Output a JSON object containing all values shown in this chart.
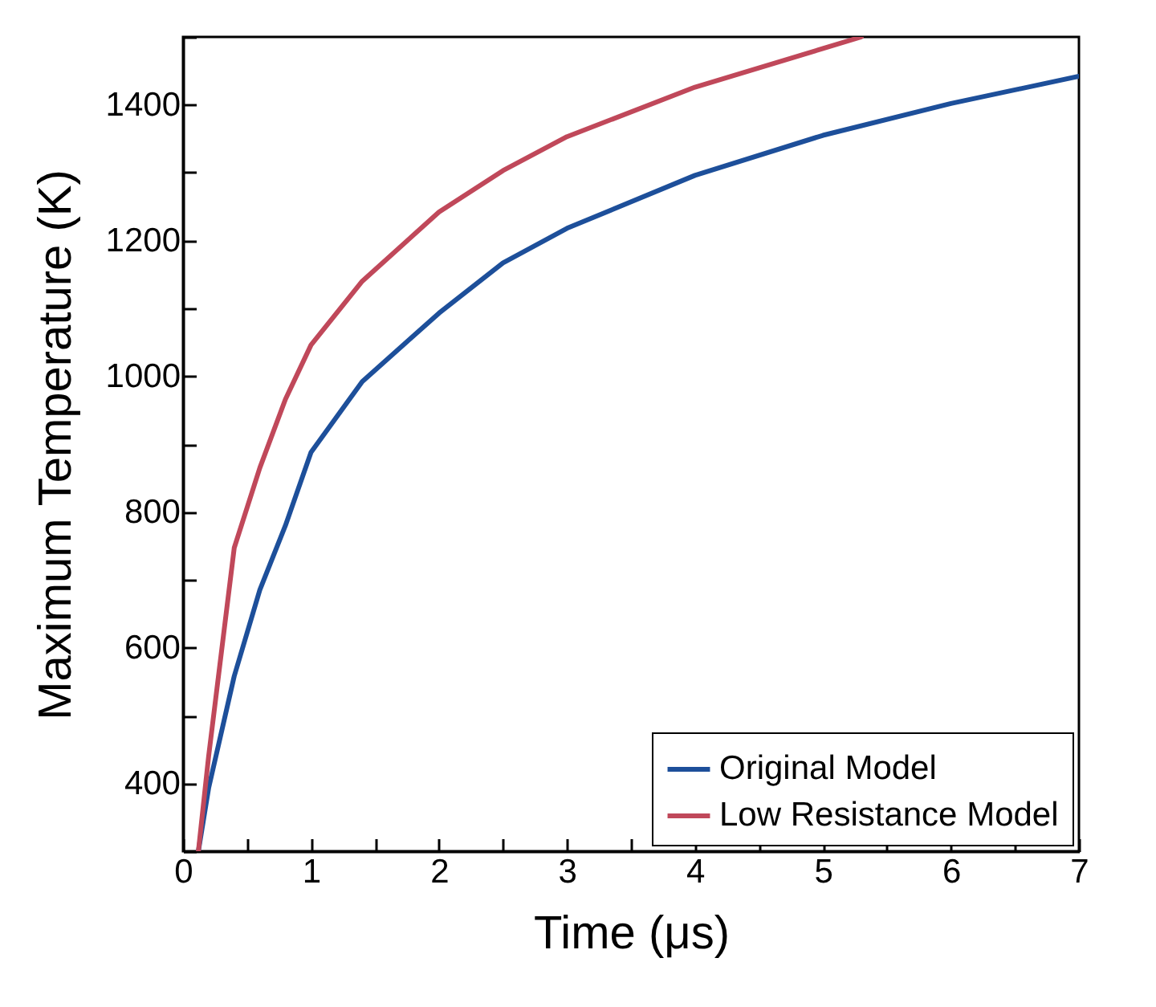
{
  "chart_data": {
    "type": "line",
    "xlabel": "Time (μs)",
    "ylabel": "Maximum Temperature (K)",
    "xlim": [
      0,
      7
    ],
    "ylim": [
      300,
      1500
    ],
    "xticks": [
      0,
      {
        "value": 0.5,
        "label": null
      },
      1,
      {
        "value": 1.5,
        "label": null
      },
      2,
      {
        "value": 2.5,
        "label": null
      },
      3,
      {
        "value": 3.5,
        "label": null
      },
      4,
      {
        "value": 4.5,
        "label": null
      },
      5,
      {
        "value": 5.5,
        "label": null
      },
      6,
      {
        "value": 6.5,
        "label": null
      },
      7
    ],
    "yticks": [
      {
        "value": 300,
        "label": null
      },
      400,
      {
        "value": 500,
        "label": null
      },
      600,
      {
        "value": 700,
        "label": null
      },
      800,
      {
        "value": 900,
        "label": null
      },
      1000,
      {
        "value": 1100,
        "label": null
      },
      1200,
      {
        "value": 1300,
        "label": null
      },
      1400,
      {
        "value": 1500,
        "label": null
      }
    ],
    "grid": false,
    "legend": "bottom right",
    "line_style": "solid",
    "marker": "none",
    "series": [
      {
        "name": "Original Model",
        "color": "#1d4f9a",
        "x": [
          0.12,
          0.2,
          0.4,
          0.6,
          0.8,
          1,
          1.4,
          2,
          2.5,
          3,
          4,
          5,
          6,
          7
        ],
        "values": [
          300,
          393,
          558,
          685,
          780,
          888,
          992,
          1093,
          1167,
          1218,
          1296,
          1355,
          1402,
          1442
        ]
      },
      {
        "name": "Low Resistance Model",
        "color": "#c0485a",
        "x": [
          0.12,
          0.2,
          0.4,
          0.6,
          0.8,
          1,
          1.4,
          2,
          2.5,
          3,
          4,
          5,
          5.3
        ],
        "values": [
          300,
          440,
          747,
          865,
          966,
          1046,
          1140,
          1242,
          1303,
          1353,
          1426,
          1483,
          1500
        ]
      }
    ]
  }
}
